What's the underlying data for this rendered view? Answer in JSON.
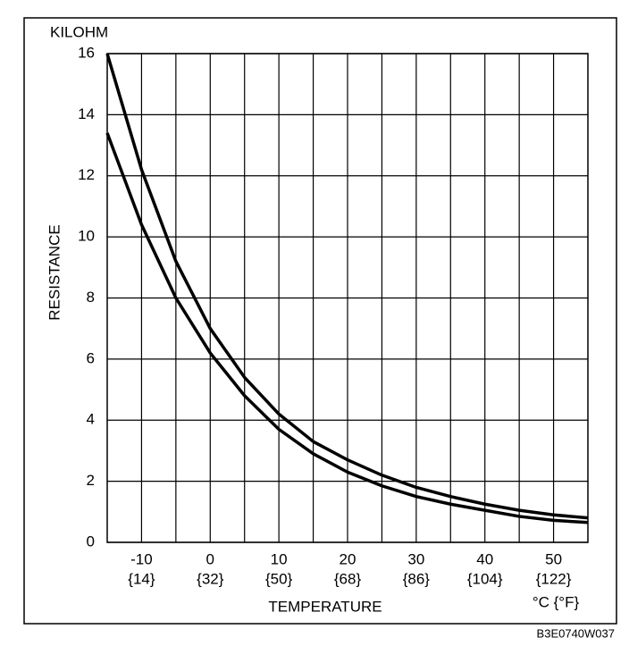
{
  "chart_data": {
    "type": "line",
    "y_unit": "KILOHM",
    "ylabel": "RESISTANCE",
    "xlabel": "TEMPERATURE",
    "x_unit": "°C {°F}",
    "figure_code": "B3E0740W037",
    "x": [
      -15,
      -10,
      -5,
      0,
      5,
      10,
      15,
      20,
      25,
      30,
      35,
      40,
      45,
      50,
      55
    ],
    "series": [
      {
        "color": "#000000",
        "values": [
          16,
          12.2,
          9.2,
          7.0,
          5.4,
          4.2,
          3.3,
          2.7,
          2.2,
          1.8,
          1.5,
          1.25,
          1.05,
          0.9,
          0.8
        ]
      },
      {
        "color": "#000000",
        "values": [
          13.4,
          10.4,
          8.0,
          6.2,
          4.8,
          3.7,
          2.9,
          2.3,
          1.85,
          1.5,
          1.25,
          1.05,
          0.85,
          0.72,
          0.65
        ]
      }
    ],
    "xlim": [
      -15,
      55
    ],
    "ylim": [
      0,
      16
    ],
    "xticks": [
      -10,
      0,
      10,
      20,
      30,
      40,
      50
    ],
    "xtick_secondary_labels": [
      "{14}",
      "{32}",
      "{50}",
      "{68}",
      "{86}",
      "{104}",
      "{122}"
    ],
    "yticks": [
      0,
      2,
      4,
      6,
      8,
      10,
      12,
      14,
      16
    ],
    "xgrid": [
      -5,
      5,
      15,
      25,
      35,
      45
    ],
    "grid": true
  }
}
